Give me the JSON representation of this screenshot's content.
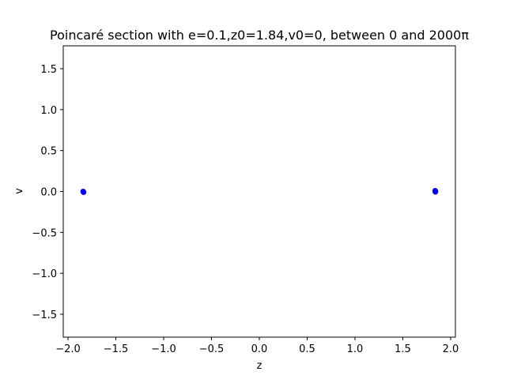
{
  "chart_data": {
    "type": "scatter",
    "title": "Poincaré section with e=0.1,z0=1.84,v0=0, between 0 and 2000π",
    "xlabel": "z",
    "ylabel": "v",
    "xlim": [
      -2.05,
      2.05
    ],
    "ylim": [
      -1.78,
      1.78
    ],
    "xticks": [
      -2.0,
      -1.5,
      -1.0,
      -0.5,
      0.0,
      0.5,
      1.0,
      1.5,
      2.0
    ],
    "xtick_labels": [
      "−2.0",
      "−1.5",
      "−1.0",
      "−0.5",
      "0.0",
      "0.5",
      "1.0",
      "1.5",
      "2.0"
    ],
    "yticks": [
      -1.5,
      -1.0,
      -0.5,
      0.0,
      0.5,
      1.0,
      1.5
    ],
    "ytick_labels": [
      "−1.5",
      "−1.0",
      "−0.5",
      "0.0",
      "0.5",
      "1.0",
      "1.5"
    ],
    "grid": false,
    "marker_color": "#0000ff",
    "series": [
      {
        "points": [
          {
            "x": -1.84,
            "y": -0.005
          },
          {
            "x": -1.838,
            "y": -0.01
          },
          {
            "x": -1.842,
            "y": 0.0
          },
          {
            "x": 1.84,
            "y": 0.005
          },
          {
            "x": 1.838,
            "y": 0.01
          },
          {
            "x": 1.842,
            "y": 0.0
          },
          {
            "x": 1.84,
            "y": -0.005
          }
        ]
      }
    ]
  }
}
